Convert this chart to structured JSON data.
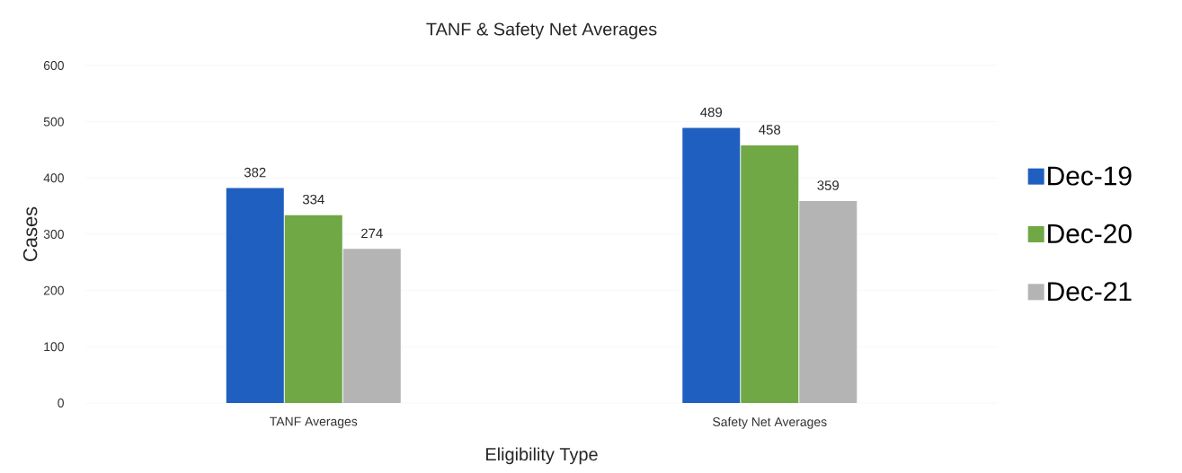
{
  "chart_data": {
    "type": "bar",
    "title": "TANF & Safety Net Averages",
    "xlabel": "Eligibility Type",
    "ylabel": "Cases",
    "categories": [
      "TANF Averages",
      "Safety Net Averages"
    ],
    "series": [
      {
        "name": "Dec-19",
        "color": "#1f5fbf",
        "values": [
          382,
          489
        ]
      },
      {
        "name": "Dec-20",
        "color": "#70a845",
        "values": [
          334,
          458
        ]
      },
      {
        "name": "Dec-21",
        "color": "#b4b4b4",
        "values": [
          274,
          359
        ]
      }
    ],
    "ylim": [
      0,
      600
    ],
    "yticks": [
      0,
      100,
      200,
      300,
      400,
      500,
      600
    ],
    "grid": "y",
    "legend": "right",
    "data_labels": true
  }
}
